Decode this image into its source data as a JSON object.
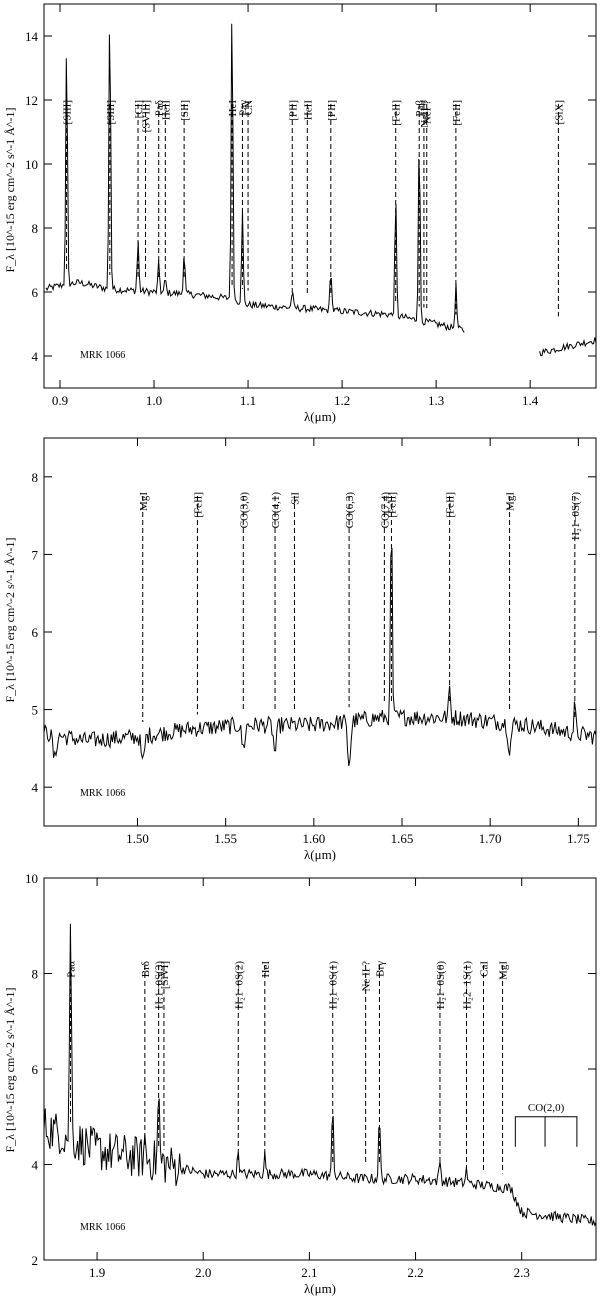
{
  "chart_data": [
    {
      "type": "line",
      "object": "MRK 1066",
      "xlabel": "λ(μm)",
      "ylabel": "F_λ [10^-15 erg cm^-2 s^-1 Å^-1]",
      "xlim": [
        0.883,
        1.47
      ],
      "ylim": [
        3.0,
        15.0
      ],
      "xticks": [
        0.9,
        1.0,
        1.1,
        1.2,
        1.3,
        1.4
      ],
      "xtick_labels": [
        "0.9",
        "1.0",
        "1.1",
        "1.2",
        "1.3",
        "1.4"
      ],
      "yticks": [
        4,
        6,
        8,
        10,
        12,
        14
      ],
      "ytick_labels": [
        "4",
        "6",
        "8",
        "10",
        "12",
        "14"
      ],
      "grid": false,
      "lines": [
        {
          "label": "[SIII]",
          "x": 0.907
        },
        {
          "label": "[SIII]",
          "x": 0.953
        },
        {
          "label": "[CI]",
          "x": 0.983
        },
        {
          "label": "[SVIII]",
          "x": 0.991
        },
        {
          "label": "Paδ",
          "x": 1.005
        },
        {
          "label": "HeII",
          "x": 1.012
        },
        {
          "label": "[SII]",
          "x": 1.032
        },
        {
          "label": "HeI",
          "x": 1.083
        },
        {
          "label": "Paγ",
          "x": 1.094
        },
        {
          "label": "CN",
          "x": 1.1
        },
        {
          "label": "[PII]",
          "x": 1.147
        },
        {
          "label": "HeII",
          "x": 1.163
        },
        {
          "label": "[PII]",
          "x": 1.188
        },
        {
          "label": "[FeII]",
          "x": 1.257
        },
        {
          "label": "Paβ",
          "x": 1.282
        },
        {
          "label": "NeII ?",
          "x": 1.287
        },
        {
          "label": "NeI ?",
          "x": 1.29
        },
        {
          "label": "[FeII]",
          "x": 1.321
        },
        {
          "label": "[SiX]",
          "x": 1.43
        }
      ],
      "continuum": [
        [
          0.885,
          6.1
        ],
        [
          0.9,
          6.2
        ],
        [
          0.92,
          6.3
        ],
        [
          0.95,
          6.1
        ],
        [
          1.0,
          6.0
        ],
        [
          1.05,
          5.9
        ],
        [
          1.08,
          5.8
        ],
        [
          1.1,
          5.6
        ],
        [
          1.15,
          5.5
        ],
        [
          1.2,
          5.4
        ],
        [
          1.25,
          5.3
        ],
        [
          1.3,
          5.0
        ],
        [
          1.33,
          4.8
        ]
      ],
      "continuum_2": [
        [
          1.41,
          4.1
        ],
        [
          1.47,
          4.5
        ]
      ],
      "emission_peaks": [
        [
          0.907,
          13.7
        ],
        [
          0.953,
          15.0
        ],
        [
          0.983,
          7.6
        ],
        [
          1.005,
          6.9
        ],
        [
          1.012,
          6.4
        ],
        [
          1.032,
          7.2
        ],
        [
          1.083,
          15.0
        ],
        [
          1.094,
          8.5
        ],
        [
          1.147,
          6.0
        ],
        [
          1.188,
          6.7
        ],
        [
          1.257,
          8.9
        ],
        [
          1.282,
          10.9
        ],
        [
          1.321,
          6.2
        ]
      ]
    },
    {
      "type": "line",
      "object": "MRK 1066",
      "xlabel": "λ(μm)",
      "ylabel": "F_λ [10^-15 erg cm^-2 s^-1 Å^-1]",
      "xlim": [
        1.447,
        1.76
      ],
      "ylim": [
        3.5,
        8.5
      ],
      "xticks": [
        1.5,
        1.55,
        1.6,
        1.65,
        1.7,
        1.75
      ],
      "xtick_labels": [
        "1.50",
        "1.55",
        "1.60",
        "1.65",
        "1.70",
        "1.75"
      ],
      "yticks": [
        4,
        5,
        6,
        7,
        8
      ],
      "ytick_labels": [
        "4",
        "5",
        "6",
        "7",
        "8"
      ],
      "grid": false,
      "lines": [
        {
          "label": "MgI",
          "x": 1.503
        },
        {
          "label": "[FeII]",
          "x": 1.534
        },
        {
          "label": "CO(3,0)",
          "x": 1.56
        },
        {
          "label": "CO(4,1)",
          "x": 1.578
        },
        {
          "label": "SiI",
          "x": 1.589
        },
        {
          "label": "CO(6,3)",
          "x": 1.62
        },
        {
          "label": "CO(7,4)",
          "x": 1.64
        },
        {
          "label": "[FeII]",
          "x": 1.644
        },
        {
          "label": "[FeII]",
          "x": 1.677
        },
        {
          "label": "MgI",
          "x": 1.711
        },
        {
          "label": "H₂1−0S(7)",
          "x": 1.748
        }
      ],
      "continuum": [
        [
          1.447,
          4.7
        ],
        [
          1.47,
          4.6
        ],
        [
          1.5,
          4.65
        ],
        [
          1.53,
          4.75
        ],
        [
          1.56,
          4.8
        ],
        [
          1.6,
          4.8
        ],
        [
          1.64,
          4.9
        ],
        [
          1.68,
          4.9
        ],
        [
          1.72,
          4.8
        ],
        [
          1.76,
          4.65
        ]
      ],
      "absorption_dips": [
        [
          1.453,
          4.35
        ],
        [
          1.503,
          4.3
        ],
        [
          1.56,
          4.5
        ],
        [
          1.578,
          4.45
        ],
        [
          1.62,
          4.3
        ],
        [
          1.711,
          4.5
        ]
      ],
      "emission_peaks": [
        [
          1.644,
          7.55
        ],
        [
          1.677,
          5.3
        ],
        [
          1.748,
          5.05
        ]
      ]
    },
    {
      "type": "line",
      "object": "MRK 1066",
      "xlabel": "λ(μm)",
      "ylabel": "F_λ [10^-15 erg cm^-2 s^-1 Å^-1]",
      "xlim": [
        1.85,
        2.37
      ],
      "ylim": [
        2.0,
        10.0
      ],
      "xticks": [
        1.9,
        2.0,
        2.1,
        2.2,
        2.3
      ],
      "xtick_labels": [
        "1.9",
        "2.0",
        "2.1",
        "2.2",
        "2.3"
      ],
      "yticks": [
        2,
        4,
        6,
        8,
        10
      ],
      "ytick_labels": [
        "2",
        "4",
        "6",
        "8",
        "10"
      ],
      "grid": false,
      "lines": [
        {
          "label": "Paα",
          "x": 1.875
        },
        {
          "label": "Brδ",
          "x": 1.945
        },
        {
          "label": "H₂1−0S(3)",
          "x": 1.958
        },
        {
          "label": "[SiVI]",
          "x": 1.963
        },
        {
          "label": "H₂1−0S(2)",
          "x": 2.033
        },
        {
          "label": "HeI",
          "x": 2.058
        },
        {
          "label": "H₂1−0S(1)",
          "x": 2.122
        },
        {
          "label": "Ne II ?",
          "x": 2.153
        },
        {
          "label": "Brγ",
          "x": 2.166
        },
        {
          "label": "H₂1−0S(0)",
          "x": 2.223
        },
        {
          "label": "H₂2−1S(1)",
          "x": 2.248
        },
        {
          "label": "CaI",
          "x": 2.264
        },
        {
          "label": "MgI",
          "x": 2.282
        }
      ],
      "bracket": {
        "label": "CO(2,0)",
        "x": [
          2.294,
          2.322,
          2.352
        ]
      },
      "continuum": [
        [
          1.85,
          4.8
        ],
        [
          1.9,
          4.3
        ],
        [
          1.95,
          4.1
        ],
        [
          2.0,
          3.8
        ],
        [
          2.05,
          3.8
        ],
        [
          2.1,
          3.8
        ],
        [
          2.15,
          3.7
        ],
        [
          2.2,
          3.7
        ],
        [
          2.25,
          3.6
        ],
        [
          2.29,
          3.5
        ],
        [
          2.3,
          3.0
        ],
        [
          2.37,
          2.8
        ]
      ],
      "emission_peaks": [
        [
          1.875,
          9.3
        ],
        [
          1.945,
          4.5
        ],
        [
          1.958,
          5.5
        ],
        [
          2.033,
          4.3
        ],
        [
          2.058,
          4.2
        ],
        [
          2.122,
          5.2
        ],
        [
          2.166,
          5.0
        ],
        [
          2.223,
          4.1
        ],
        [
          2.248,
          3.9
        ]
      ]
    }
  ]
}
